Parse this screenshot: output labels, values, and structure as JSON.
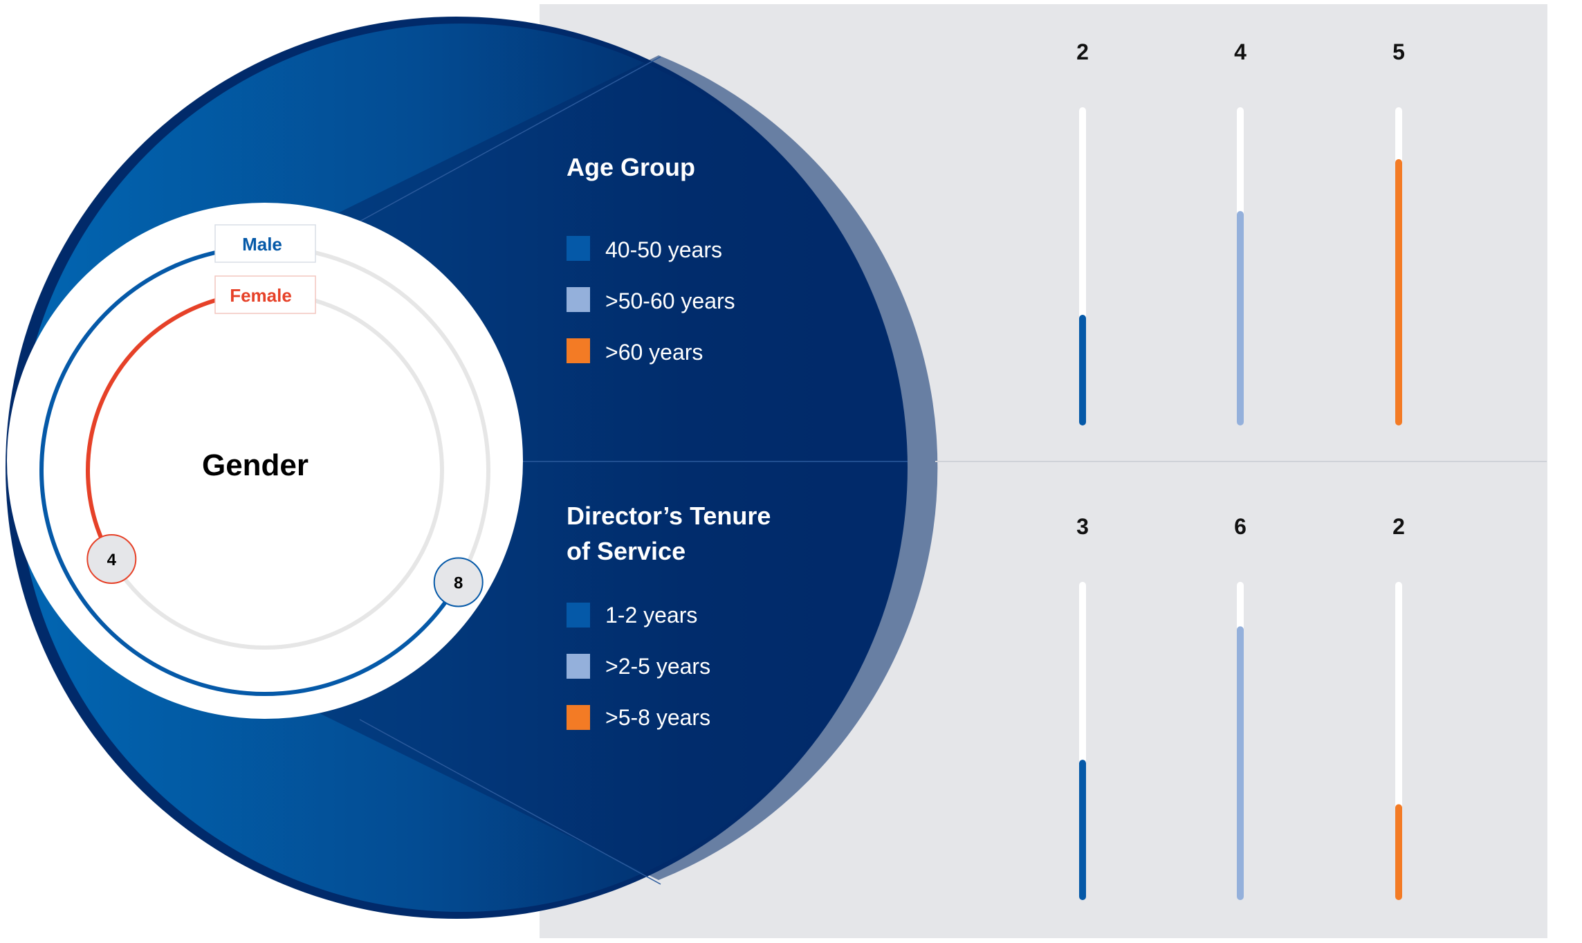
{
  "colors": {
    "panel_bg": "#e5e6e9",
    "navy": "#012a6a",
    "blue": "#0559a8",
    "light_blue": "#94b0db",
    "orange": "#f37b25",
    "female_red": "#e64128",
    "track_gray": "#e6e6e6",
    "bar_track": "#ffffff"
  },
  "gender": {
    "title": "Gender",
    "male_label": "Male",
    "female_label": "Female",
    "male_value": "8",
    "female_value": "4"
  },
  "sections": [
    {
      "title_lines": [
        "Age Group"
      ],
      "legend": [
        {
          "label": "40-50 years",
          "color_key": "blue"
        },
        {
          "label": ">50-60 years",
          "color_key": "light_blue"
        },
        {
          "label": ">60 years",
          "color_key": "orange"
        }
      ]
    },
    {
      "title_lines": [
        "Director’s Tenure",
        "of Service"
      ],
      "legend": [
        {
          "label": "1-2 years",
          "color_key": "blue"
        },
        {
          "label": ">2-5 years",
          "color_key": "light_blue"
        },
        {
          "label": ">5-8 years",
          "color_key": "orange"
        }
      ]
    }
  ],
  "chart_data": [
    {
      "type": "pie",
      "title": "Gender",
      "categories": [
        "Male",
        "Female"
      ],
      "values": [
        8,
        4
      ],
      "ring_max": 12
    },
    {
      "type": "bar",
      "title": "Age Group",
      "categories": [
        "40-50 years",
        ">50-60 years",
        ">60 years"
      ],
      "values": [
        2,
        4,
        5
      ],
      "ylim": [
        0,
        6
      ]
    },
    {
      "type": "bar",
      "title": "Director’s Tenure of Service",
      "categories": [
        "1-2 years",
        ">2-5 years",
        ">5-8 years"
      ],
      "values": [
        3,
        6,
        2
      ],
      "ylim": [
        0,
        7
      ]
    }
  ]
}
